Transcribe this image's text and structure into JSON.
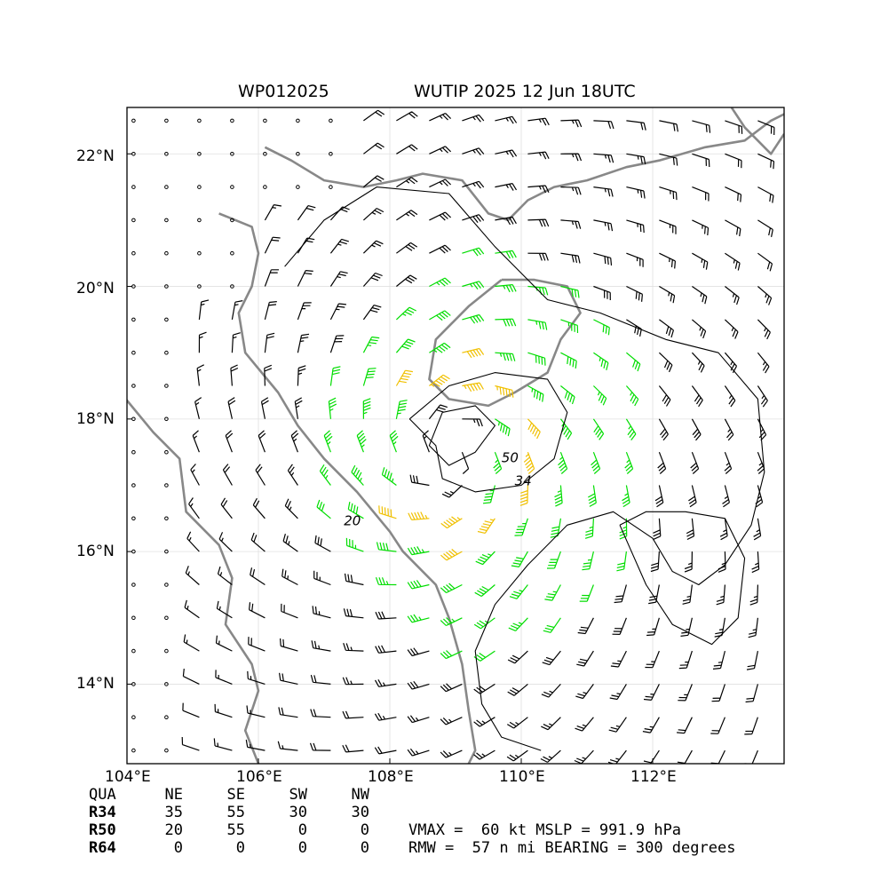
{
  "title": {
    "storm_id": "WP012025",
    "storm_info": "WUTIP 2025 12 Jun 18UTC"
  },
  "map": {
    "lon_range": [
      104.0,
      114.0
    ],
    "lat_range": [
      12.8,
      22.7
    ],
    "x_ticks": [
      "104°E",
      "106°E",
      "108°E",
      "110°E",
      "112°E"
    ],
    "y_ticks": [
      "14°N",
      "16°N",
      "18°N",
      "20°N",
      "22°N"
    ],
    "grid": true,
    "storm_center": {
      "lon": 108.9,
      "lat": 17.5
    },
    "contour_labels": [
      "20",
      "34",
      "50"
    ],
    "colors": {
      "calm": "#000000",
      "below_34kt": "#000000",
      "34_to_50kt": "#00dd00",
      "50_to_64kt": "#f0c000",
      "above_64kt": "#e05000",
      "coastline": "#888888"
    }
  },
  "wind_radii": {
    "headers": [
      "QUA",
      "NE",
      "SE",
      "SW",
      "NW"
    ],
    "rows": [
      {
        "label": "R34",
        "values": [
          "35",
          "55",
          "30",
          "30"
        ]
      },
      {
        "label": "R50",
        "values": [
          "20",
          "55",
          "0",
          "0"
        ]
      },
      {
        "label": "R64",
        "values": [
          "0",
          "0",
          "0",
          "0"
        ]
      }
    ]
  },
  "summary": {
    "line1": "VMAX =  60 kt MSLP = 991.9 hPa",
    "line2": "RMW =  57 n mi BEARING = 300 degrees"
  }
}
